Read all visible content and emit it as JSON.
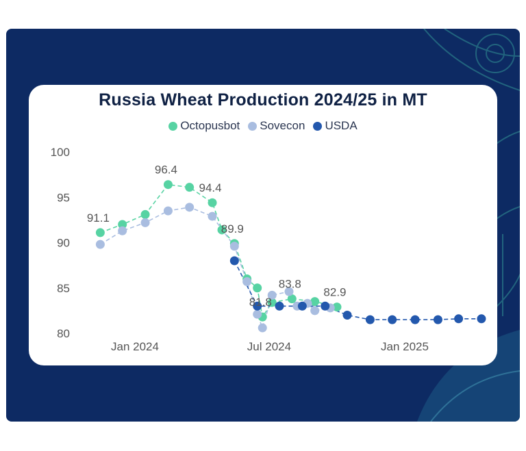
{
  "colors": {
    "background": "#0d2a63",
    "card": "#ffffff",
    "octopusbot": "#57d3a3",
    "sovecon": "#a9bde0",
    "usda": "#2358ad"
  },
  "chart_data": {
    "type": "line",
    "title": "Russia Wheat Production 2024/25 in MT",
    "xlabel": "",
    "ylabel": "",
    "ylim": [
      80,
      100
    ],
    "yticks": [
      80,
      85,
      90,
      95,
      100
    ],
    "xticks": [
      {
        "label": "Jan 2024",
        "x": "2024-01-01"
      },
      {
        "label": "Jul 2024",
        "x": "2024-07-01"
      },
      {
        "label": "Jan 2025",
        "x": "2025-01-01"
      }
    ],
    "legend_position": "top-center",
    "series": [
      {
        "name": "Octopusbot",
        "color": "#57d3a3",
        "points": [
          {
            "x": "2023-11-15",
            "y": 91.1,
            "label": "91.1"
          },
          {
            "x": "2023-12-15",
            "y": 92.0
          },
          {
            "x": "2024-01-15",
            "y": 93.1
          },
          {
            "x": "2024-02-15",
            "y": 96.4,
            "label": "96.4"
          },
          {
            "x": "2024-03-15",
            "y": 96.1
          },
          {
            "x": "2024-04-15",
            "y": 94.4,
            "label": "94.4"
          },
          {
            "x": "2024-04-28",
            "y": 91.4
          },
          {
            "x": "2024-05-15",
            "y": 89.9,
            "label": "89.9"
          },
          {
            "x": "2024-06-01",
            "y": 86.0
          },
          {
            "x": "2024-06-15",
            "y": 85.0
          },
          {
            "x": "2024-06-22",
            "y": 81.8,
            "label": "81.8"
          },
          {
            "x": "2024-07-05",
            "y": 83.4
          },
          {
            "x": "2024-08-01",
            "y": 83.8,
            "label": "83.8"
          },
          {
            "x": "2024-09-01",
            "y": 83.5
          },
          {
            "x": "2024-10-01",
            "y": 82.9,
            "label": "82.9"
          }
        ]
      },
      {
        "name": "Sovecon",
        "color": "#a9bde0",
        "points": [
          {
            "x": "2023-11-15",
            "y": 89.8
          },
          {
            "x": "2023-12-15",
            "y": 91.3
          },
          {
            "x": "2024-01-15",
            "y": 92.2
          },
          {
            "x": "2024-02-15",
            "y": 93.5
          },
          {
            "x": "2024-03-15",
            "y": 93.9
          },
          {
            "x": "2024-04-15",
            "y": 92.9
          },
          {
            "x": "2024-05-15",
            "y": 89.6
          },
          {
            "x": "2024-06-01",
            "y": 85.7
          },
          {
            "x": "2024-06-15",
            "y": 82.1
          },
          {
            "x": "2024-06-22",
            "y": 80.6
          },
          {
            "x": "2024-07-05",
            "y": 84.2
          },
          {
            "x": "2024-07-28",
            "y": 84.6
          },
          {
            "x": "2024-08-08",
            "y": 83.0
          },
          {
            "x": "2024-08-22",
            "y": 83.3
          },
          {
            "x": "2024-09-01",
            "y": 82.5
          },
          {
            "x": "2024-09-22",
            "y": 82.8
          }
        ]
      },
      {
        "name": "USDA",
        "color": "#2358ad",
        "points": [
          {
            "x": "2024-05-15",
            "y": 88.0
          },
          {
            "x": "2024-06-15",
            "y": 83.0
          },
          {
            "x": "2024-07-15",
            "y": 83.0
          },
          {
            "x": "2024-08-15",
            "y": 83.0
          },
          {
            "x": "2024-09-15",
            "y": 83.0
          },
          {
            "x": "2024-10-15",
            "y": 82.0
          },
          {
            "x": "2024-11-15",
            "y": 81.5
          },
          {
            "x": "2024-12-15",
            "y": 81.5
          },
          {
            "x": "2025-01-15",
            "y": 81.5
          },
          {
            "x": "2025-02-15",
            "y": 81.5
          },
          {
            "x": "2025-03-15",
            "y": 81.6
          },
          {
            "x": "2025-04-15",
            "y": 81.6
          }
        ]
      }
    ]
  }
}
